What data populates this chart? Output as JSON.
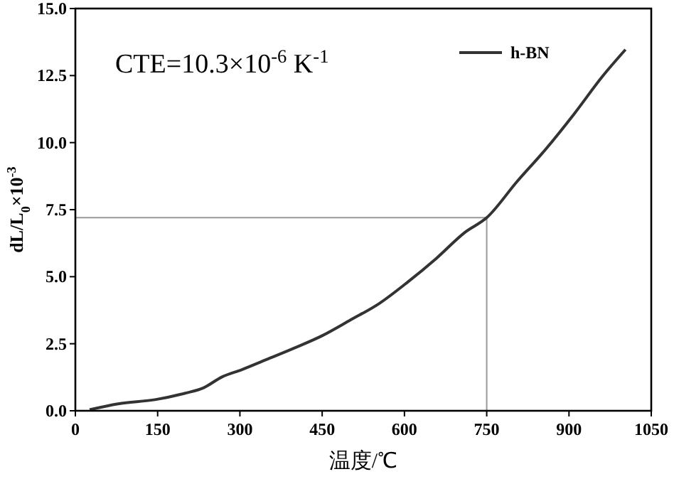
{
  "chart_data": {
    "type": "line",
    "xlabel": "温度/℃",
    "ylabel": "dL/L$_{0}$×10$^{-3}$",
    "annotations": [
      "CTE=10.3×10$^{-6}$ K$^{-1}$"
    ],
    "xlim": [
      0,
      1050
    ],
    "xticks": [
      0,
      150,
      300,
      450,
      600,
      750,
      900,
      1050
    ],
    "ylim": [
      0,
      15
    ],
    "yticks": [
      {
        "value": 0,
        "label": "0.0"
      },
      {
        "value": 2.5,
        "label": "2.5"
      },
      {
        "value": 5,
        "label": "5.0"
      },
      {
        "value": 7.5,
        "label": "7.5"
      },
      {
        "value": 10,
        "label": "10.0"
      },
      {
        "value": 12.5,
        "label": "12.5"
      },
      {
        "value": 15,
        "label": "15.0"
      }
    ],
    "series": [
      {
        "name": "h-BN",
        "color": "#333333",
        "x": [
          26,
          78,
          147,
          199,
          234,
          268,
          303,
          346,
          398,
          450,
          502,
          554,
          606,
          658,
          710,
          750,
          805,
          857,
          909,
          961,
          1003
        ],
        "values": [
          0.04,
          0.26,
          0.42,
          0.65,
          0.86,
          1.27,
          1.53,
          1.89,
          2.33,
          2.8,
          3.39,
          4.0,
          4.8,
          5.68,
          6.65,
          7.2,
          8.54,
          9.74,
          11.06,
          12.47,
          13.47
        ]
      }
    ],
    "ref_lines": [
      {
        "axis": "x",
        "value": 750,
        "color": "#999999"
      },
      {
        "axis": "y",
        "value": 7.2,
        "color": "#999999"
      }
    ],
    "legend": "top right",
    "grid": false,
    "marker": "none",
    "line_style": "solid"
  }
}
